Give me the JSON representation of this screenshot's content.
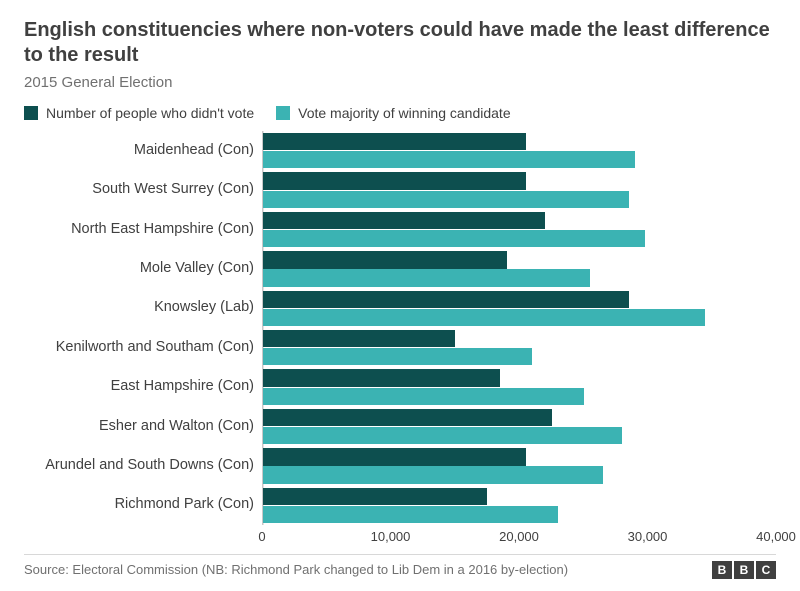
{
  "title": "English constituencies where non-voters could have made the least difference to the result",
  "subtitle": "2015 General Election",
  "legend": [
    {
      "label": "Number of people who didn't vote",
      "color": "#0d4f4f"
    },
    {
      "label": "Vote majority of winning candidate",
      "color": "#3bb3b3"
    }
  ],
  "chart": {
    "type": "bar-horizontal-grouped",
    "x_min": 0,
    "x_max": 40000,
    "x_tick_step": 10000,
    "x_ticks": [
      "0",
      "10,000",
      "20,000",
      "30,000",
      "40,000"
    ],
    "background_color": "#ffffff",
    "grid_color": "#e2e2e2",
    "axis_color": "#c8c8c8",
    "label_fontsize": 14.5,
    "tick_fontsize": 13,
    "series_colors": [
      "#0d4f4f",
      "#3bb3b3"
    ],
    "categories": [
      "Maidenhead (Con)",
      "South West Surrey (Con)",
      "North East Hampshire (Con)",
      "Mole Valley (Con)",
      "Knowsley (Lab)",
      "Kenilworth and Southam (Con)",
      "East Hampshire (Con)",
      "Esher and Walton (Con)",
      "Arundel and South Downs (Con)",
      "Richmond Park (Con)"
    ],
    "series": [
      {
        "name": "Number of people who didn't vote",
        "values": [
          20500,
          20500,
          22000,
          19000,
          28500,
          15000,
          18500,
          22500,
          20500,
          17500
        ]
      },
      {
        "name": "Vote majority of winning candidate",
        "values": [
          29000,
          28500,
          29800,
          25500,
          34500,
          21000,
          25000,
          28000,
          26500,
          23000
        ]
      }
    ]
  },
  "source": "Source: Electoral Commission (NB: Richmond Park changed to Lib Dem in a 2016 by-election)",
  "logo": [
    "B",
    "B",
    "C"
  ]
}
